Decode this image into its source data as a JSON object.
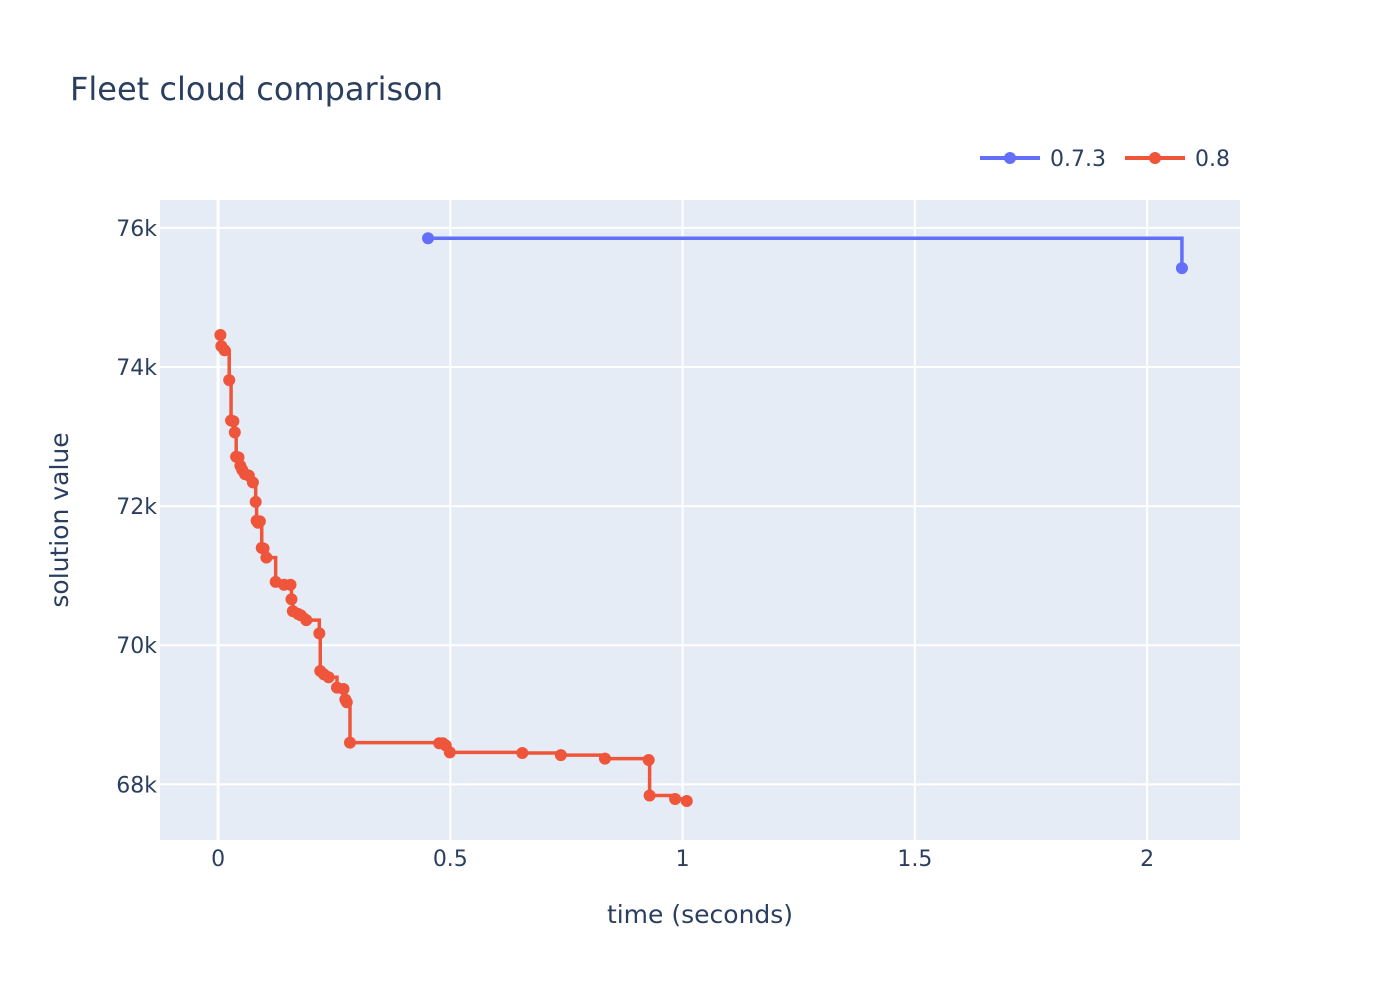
{
  "chart_data": {
    "type": "line",
    "line_shape": "step",
    "title": "Fleet cloud comparison",
    "xlabel": "time (seconds)",
    "ylabel": "solution value",
    "xlim": [
      -0.125,
      2.2
    ],
    "ylim": [
      67200,
      76400
    ],
    "x_ticks": [
      0,
      0.5,
      1,
      1.5,
      2
    ],
    "x_tick_labels": [
      "0",
      "0.5",
      "1",
      "1.5",
      "2"
    ],
    "y_ticks": [
      68000,
      70000,
      72000,
      74000,
      76000
    ],
    "y_tick_labels": [
      "68k",
      "70k",
      "72k",
      "74k",
      "76k"
    ],
    "grid": true,
    "legend_position": "top-right",
    "plot_background": "#e5ecf6",
    "series": [
      {
        "name": "0.7.3",
        "color": "#636efa",
        "x": [
          0.452,
          2.075
        ],
        "y": [
          75850,
          75420
        ]
      },
      {
        "name": "0.8",
        "color": "#ef553b",
        "x": [
          0.005,
          0.007,
          0.014,
          0.024,
          0.028,
          0.033,
          0.036,
          0.039,
          0.044,
          0.048,
          0.052,
          0.058,
          0.066,
          0.075,
          0.081,
          0.083,
          0.086,
          0.09,
          0.094,
          0.098,
          0.104,
          0.124,
          0.142,
          0.156,
          0.158,
          0.161,
          0.172,
          0.178,
          0.19,
          0.218,
          0.22,
          0.228,
          0.238,
          0.256,
          0.27,
          0.274,
          0.277,
          0.284,
          0.476,
          0.484,
          0.49,
          0.499,
          0.655,
          0.738,
          0.833,
          0.927,
          0.929,
          0.984,
          1.009
        ],
        "y": [
          74460,
          74300,
          74240,
          73810,
          73230,
          73220,
          73060,
          72710,
          72700,
          72580,
          72520,
          72460,
          72440,
          72340,
          72060,
          71790,
          71760,
          71780,
          71400,
          71390,
          71260,
          70910,
          70870,
          70870,
          70660,
          70490,
          70450,
          70430,
          70360,
          70170,
          69630,
          69580,
          69540,
          69390,
          69370,
          69220,
          69180,
          68600,
          68590,
          68590,
          68560,
          68460,
          68450,
          68420,
          68370,
          68350,
          67840,
          67790,
          67760
        ]
      }
    ]
  }
}
